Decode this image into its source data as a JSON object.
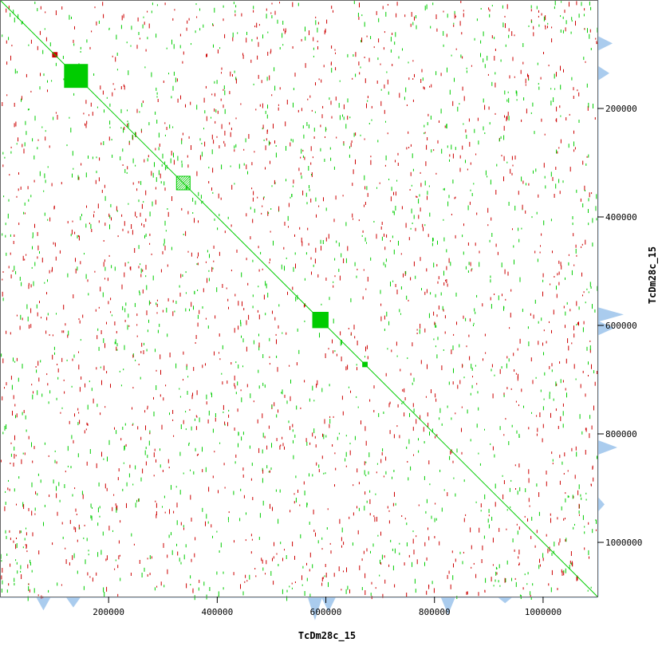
{
  "chart_data": {
    "type": "scatter",
    "title": "",
    "xlabel": "TcDm28c_15",
    "ylabel": "TcDm28c_15",
    "xlim": [
      0,
      1100000
    ],
    "ylim": [
      0,
      1100000
    ],
    "x_ticks": [
      200000,
      400000,
      600000,
      800000,
      1000000
    ],
    "y_ticks": [
      200000,
      400000,
      600000,
      800000,
      1000000
    ],
    "x_tick_labels": [
      "200000",
      "400000",
      "600000",
      "800000",
      "1000000"
    ],
    "y_tick_labels": [
      "200000",
      "400000",
      "600000",
      "800000",
      "1000000"
    ],
    "colors": {
      "forward": "#00cc00",
      "reverse": "#cc0000",
      "density": "#aaccee",
      "frame": "#666666"
    },
    "main_diagonal": {
      "from": [
        0,
        0
      ],
      "to": [
        1100000,
        1100000
      ]
    },
    "blocks": [
      {
        "start": 118000,
        "end": 162000,
        "kind": "forward"
      },
      {
        "start": 575000,
        "end": 605000,
        "kind": "forward"
      },
      {
        "start": 325000,
        "end": 350000,
        "kind": "forward-hatch"
      },
      {
        "start": 96000,
        "end": 106000,
        "kind": "reverse"
      },
      {
        "start": 667000,
        "end": 677000,
        "kind": "forward"
      }
    ],
    "density_peaks": [
      {
        "pos": 80000,
        "height": 0.45
      },
      {
        "pos": 135000,
        "height": 0.35
      },
      {
        "pos": 580000,
        "height": 0.8
      },
      {
        "pos": 605000,
        "height": 0.5
      },
      {
        "pos": 825000,
        "height": 0.6
      },
      {
        "pos": 930000,
        "height": 0.2
      }
    ]
  }
}
